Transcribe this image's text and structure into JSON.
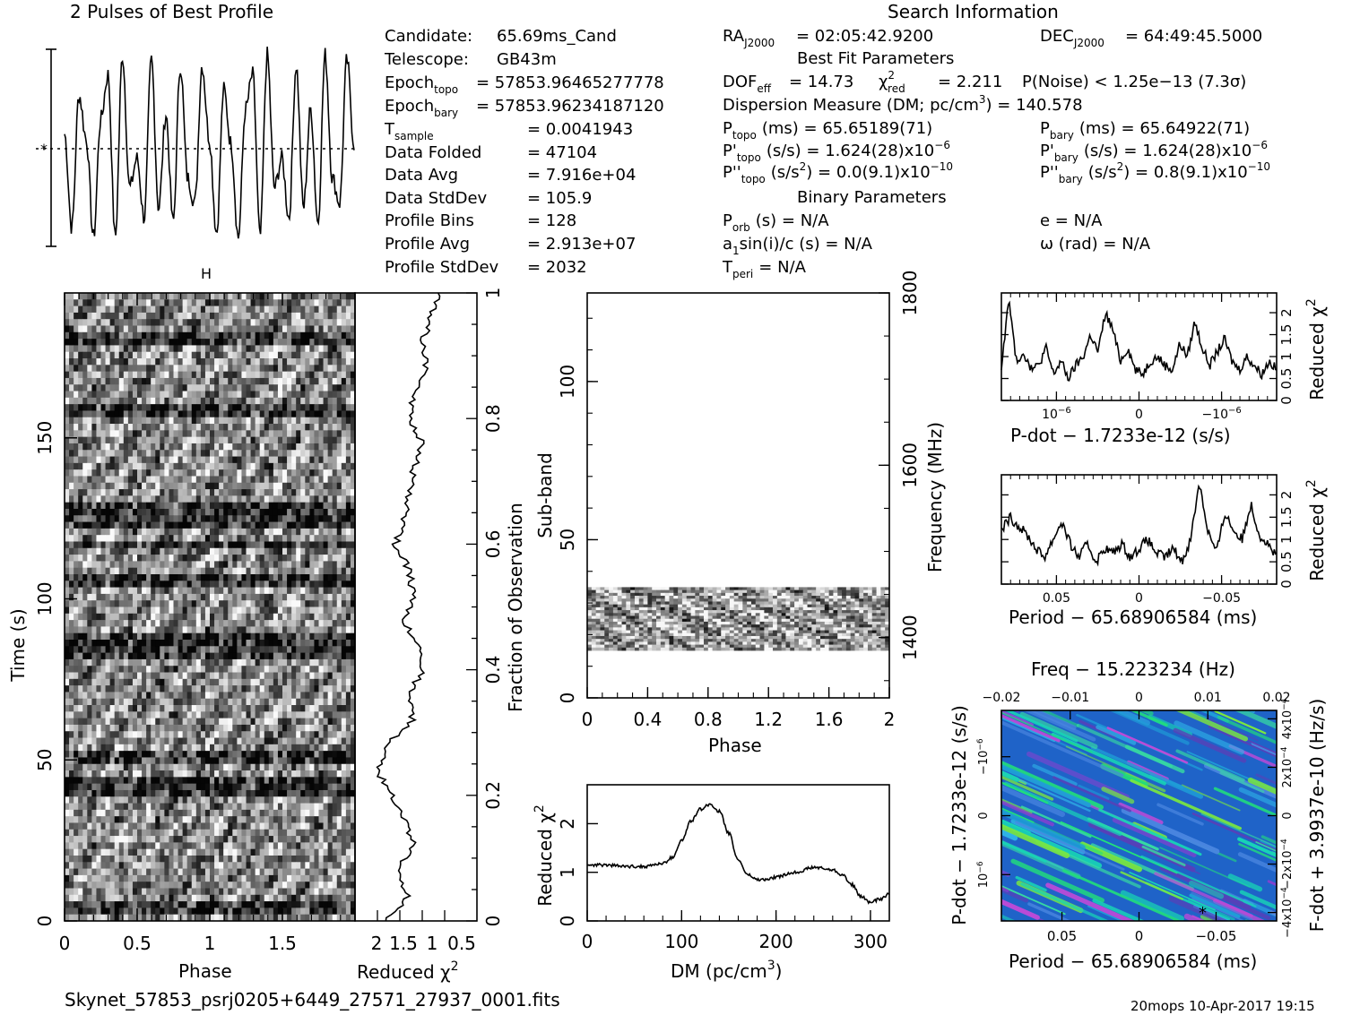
{
  "header": {
    "profile_title": "2 Pulses of Best Profile",
    "search_title": "Search Information",
    "best_fit_title": "Best Fit Parameters",
    "binary_title": "Binary Parameters",
    "candidate_label": "Candidate:",
    "candidate": "65.69ms_Cand",
    "telescope_label": "Telescope:",
    "telescope": "GB43m",
    "epoch_topo_label": "Epoch",
    "epoch_topo_sub": "topo",
    "epoch_topo": "= 57853.96465277778",
    "epoch_bary_label": "Epoch",
    "epoch_bary_sub": "bary",
    "epoch_bary": "= 57853.96234187120",
    "tsample_label": "T",
    "tsample_sub": "sample",
    "tsample": "=   0.0041943",
    "data_folded_label": "Data Folded",
    "data_folded": "=   47104",
    "data_avg_label": "Data Avg",
    "data_avg": "=   7.916e+04",
    "data_stddev_label": "Data StdDev",
    "data_stddev": "=   105.9",
    "profile_bins_label": "Profile Bins",
    "profile_bins": "=   128",
    "profile_avg_label": "Profile Avg",
    "profile_avg": "=   2.913e+07",
    "profile_stddev_label": "Profile StdDev",
    "profile_stddev": "=   2032",
    "ra_label": "RA",
    "ra_sub": "J2000",
    "ra": "= 02:05:42.9200",
    "dec_label": "DEC",
    "dec_sub": "J2000",
    "dec": "= 64:49:45.5000",
    "dof": "DOF",
    "dof_sub": "eff",
    "dof_val": "= 14.73",
    "chi_label": "χ",
    "chi_sub": "red",
    "chi_val": "= 2.211",
    "pnoise": "P(Noise) < 1.25e−13   (7.3σ)",
    "dm_line": "Dispersion Measure (DM; pc/cm",
    "dm_val": ") = 140.578",
    "ptopo": "(ms) =   65.65189(71)",
    "pbary": "(ms) =   65.64922(71)",
    "pdtopo": "(s/s) =   1.624(28)x10",
    "pdbary": "(s/s) =   1.624(28)x10",
    "pddtopo": "(s/s",
    "pddtopo_val": ") = 0.0(9.1)x10",
    "pddbary": "(s/s",
    "pddbary_val": ") =   0.8(9.1)x10",
    "exp6": "−6",
    "exp10": "−10",
    "porb": "(s) = N/A",
    "ecc": "e = N/A",
    "asini": "sin(i)/c (s) = N/A",
    "omega": "ω (rad) = N/A",
    "tperi": "= N/A"
  },
  "footer": {
    "filename": "Skynet_57853_psrj0205+6449_27571_27937_0001.fits",
    "stamp": "20mops 10-Apr-2017 19:15"
  },
  "chart_data": [
    {
      "type": "line",
      "title": "2 Pulses of Best Profile",
      "x": [
        0,
        0.05,
        0.1,
        0.15,
        0.2,
        0.25,
        0.3,
        0.35,
        0.4,
        0.45,
        0.5,
        0.55,
        0.6,
        0.65,
        0.7,
        0.75,
        0.8,
        0.85,
        0.9,
        0.95,
        1.0,
        1.05,
        1.1,
        1.15,
        1.2,
        1.25,
        1.3,
        1.35,
        1.4,
        1.45,
        1.5,
        1.55,
        1.6,
        1.65,
        1.7,
        1.75,
        1.8,
        1.85,
        1.9,
        1.95,
        2.0
      ],
      "values": [
        0.15,
        -0.8,
        0.55,
        0.1,
        -0.9,
        0.3,
        0.75,
        -0.9,
        0.95,
        -0.4,
        -0.1,
        -0.7,
        0.9,
        -0.6,
        0.35,
        -0.75,
        0.85,
        -0.3,
        -0.55,
        0.85,
        0.1,
        -0.85,
        0.6,
        0.05,
        -0.9,
        0.4,
        0.75,
        -0.9,
        0.95,
        -0.4,
        -0.1,
        -0.7,
        0.85,
        -0.6,
        0.4,
        -0.75,
        0.95,
        -0.3,
        -0.55,
        0.9,
        0.05
      ]
    },
    {
      "type": "heatmap",
      "xlabel": "Phase",
      "ylabel": "Time (s)",
      "xlim": [
        0,
        2
      ],
      "ylim": [
        0,
        195
      ],
      "xticks": [
        "0",
        "0.5",
        "1",
        "1.5"
      ],
      "yticks": [
        "0",
        "50",
        "100",
        "150"
      ]
    },
    {
      "type": "line",
      "xlabel": "Reduced χ",
      "xticks": [
        "2",
        "1.5",
        "1",
        "0.5"
      ],
      "ylabel": "Fraction of Observation",
      "yticks": [
        "0",
        "0.2",
        "0.4",
        "0.6",
        "0.8",
        "1"
      ],
      "y": [
        0,
        0.04,
        0.08,
        0.12,
        0.16,
        0.2,
        0.24,
        0.28,
        0.32,
        0.36,
        0.4,
        0.44,
        0.48,
        0.52,
        0.56,
        0.6,
        0.64,
        0.68,
        0.72,
        0.76,
        0.8,
        0.84,
        0.88,
        0.92,
        0.96,
        1.0
      ],
      "values": [
        0.3,
        0.55,
        0.4,
        0.6,
        0.5,
        0.35,
        0.2,
        0.3,
        0.6,
        0.55,
        0.7,
        0.65,
        0.5,
        0.6,
        0.55,
        0.4,
        0.5,
        0.55,
        0.6,
        0.7,
        0.55,
        0.6,
        0.75,
        0.7,
        0.8,
        0.9
      ]
    },
    {
      "type": "heatmap",
      "xlabel": "Phase",
      "ylabel": "Sub-band",
      "y2label": "Frequency (MHz)",
      "xticks": [
        "0",
        "0.4",
        "0.8",
        "1.2",
        "1.6",
        "2"
      ],
      "yticks": [
        "0",
        "50",
        "100"
      ],
      "y2ticks": [
        "1400",
        "1600",
        "1800"
      ],
      "band": [
        15,
        35
      ]
    },
    {
      "type": "line",
      "xlabel": "DM (pc/cm",
      "ylabel": "Reduced χ",
      "xticks": [
        "0",
        "100",
        "200",
        "300"
      ],
      "yticks": [
        "0",
        "1",
        "2"
      ],
      "x": [
        0,
        20,
        40,
        60,
        80,
        90,
        100,
        110,
        120,
        130,
        140,
        150,
        160,
        170,
        180,
        190,
        200,
        220,
        240,
        260,
        270,
        280,
        290,
        300,
        310,
        320
      ],
      "values": [
        1.15,
        1.15,
        1.12,
        1.12,
        1.18,
        1.3,
        1.65,
        2.05,
        2.3,
        2.4,
        2.25,
        1.8,
        1.25,
        0.95,
        0.85,
        0.85,
        0.9,
        1.0,
        1.1,
        1.05,
        0.95,
        0.75,
        0.5,
        0.38,
        0.45,
        0.55
      ]
    },
    {
      "type": "line",
      "xlabel": "P-dot − 1.7233e-12 (s/s)",
      "ylabel": "Reduced χ",
      "xticks": [
        "10",
        "0",
        "−10"
      ],
      "yticks": [
        "0",
        "0.5",
        "1",
        "1.5",
        "2"
      ],
      "values": [
        0.8,
        2.3,
        0.9,
        1.1,
        0.7,
        0.8,
        1.2,
        0.6,
        0.9,
        0.5,
        0.8,
        1.0,
        1.5,
        1.1,
        2.0,
        1.6,
        0.9,
        1.2,
        0.7,
        0.6,
        0.9,
        1.0,
        0.8,
        0.7,
        1.3,
        1.0,
        1.8,
        1.2,
        0.8,
        1.1,
        1.4,
        0.9,
        0.7,
        1.0,
        0.8,
        0.6,
        0.9,
        0.7
      ]
    },
    {
      "type": "line",
      "xlabel": "Period − 65.68906584 (ms)",
      "ylabel": "Reduced χ",
      "xticks": [
        "0.05",
        "0",
        "−0.05"
      ],
      "yticks": [
        "0",
        "0.5",
        "1",
        "1.5",
        "2"
      ],
      "values": [
        1.2,
        1.5,
        1.3,
        1.1,
        0.8,
        0.6,
        1.0,
        1.4,
        0.9,
        0.6,
        0.9,
        0.5,
        0.8,
        0.7,
        0.9,
        0.6,
        0.8,
        1.0,
        0.7,
        0.6,
        0.8,
        0.5,
        1.0,
        2.3,
        1.2,
        0.7,
        1.6,
        1.2,
        1.0,
        1.8,
        1.1,
        0.9,
        0.6
      ]
    },
    {
      "type": "heatmap",
      "title": "Freq − 15.223234 (Hz)",
      "xlabel": "Period − 65.68906584 (ms)",
      "ylabel": "P-dot − 1.7233e-12 (s/s)",
      "y2label": "F-dot + 3.9937e-10 (Hz/s)",
      "xticks": [
        "0.05",
        "0",
        "−0.05"
      ],
      "x2ticks": [
        "−0.02",
        "−0.01",
        "0",
        "0.01",
        "0.02"
      ]
    }
  ]
}
